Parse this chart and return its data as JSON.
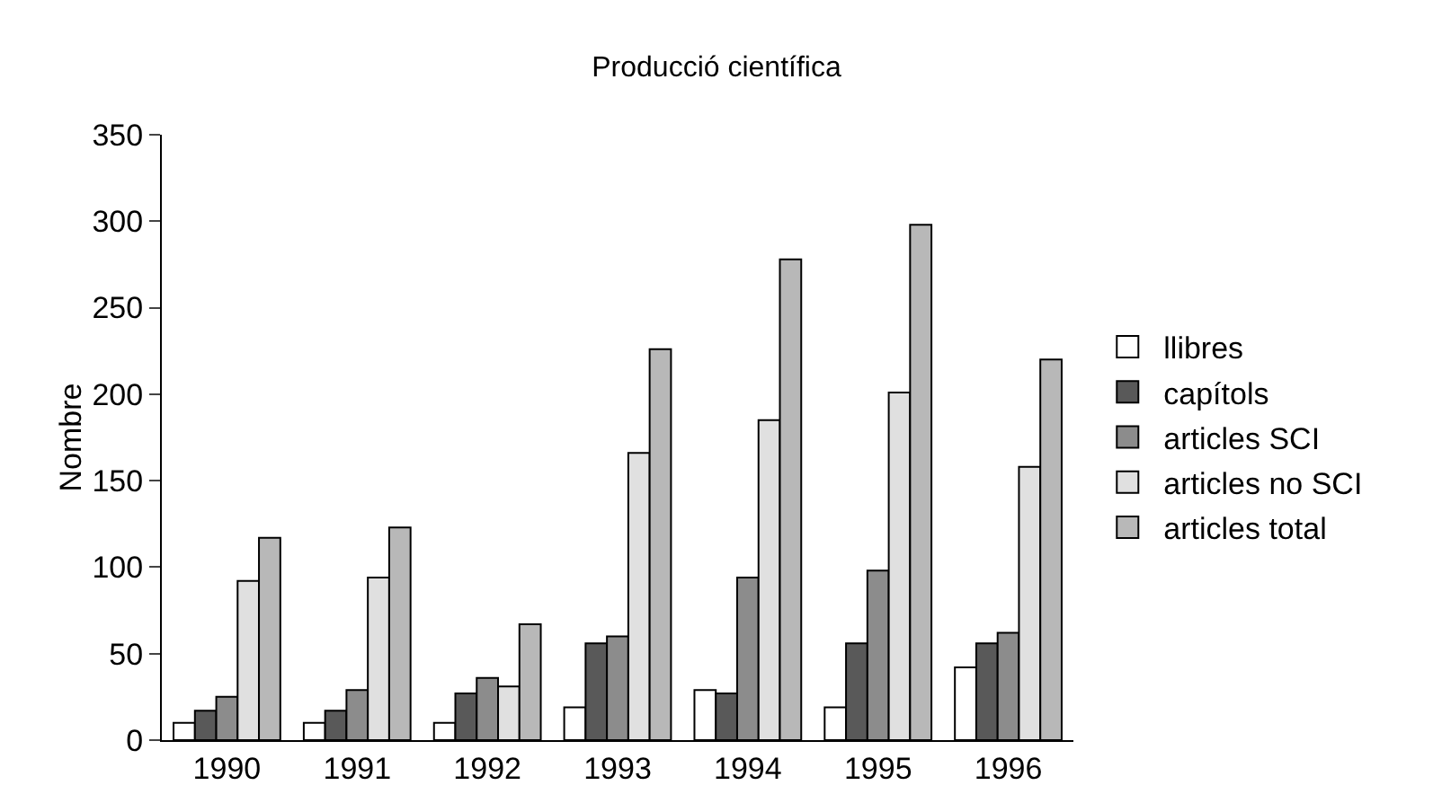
{
  "chart_data": {
    "type": "bar",
    "title": "Producció científica",
    "ylabel": "Nombre",
    "categories": [
      "1990",
      "1991",
      "1992",
      "1993",
      "1994",
      "1995",
      "1996"
    ],
    "series": [
      {
        "name": "llibres",
        "color": "#ffffff",
        "values": [
          10,
          10,
          10,
          19,
          29,
          19,
          42
        ]
      },
      {
        "name": "capítols",
        "color": "#595959",
        "values": [
          17,
          17,
          27,
          56,
          27,
          56,
          56
        ]
      },
      {
        "name": "articles SCI",
        "color": "#8c8c8c",
        "values": [
          25,
          29,
          36,
          60,
          94,
          98,
          62
        ]
      },
      {
        "name": "articles no SCI",
        "color": "#e0e0e0",
        "values": [
          92,
          94,
          31,
          166,
          185,
          201,
          158
        ]
      },
      {
        "name": "articles total",
        "color": "#b8b8b8",
        "values": [
          117,
          123,
          67,
          226,
          278,
          298,
          220
        ]
      }
    ],
    "ylim": [
      0,
      350
    ],
    "yticks": [
      0,
      50,
      100,
      150,
      200,
      250,
      300,
      350
    ],
    "grid": false,
    "legend": "right"
  }
}
